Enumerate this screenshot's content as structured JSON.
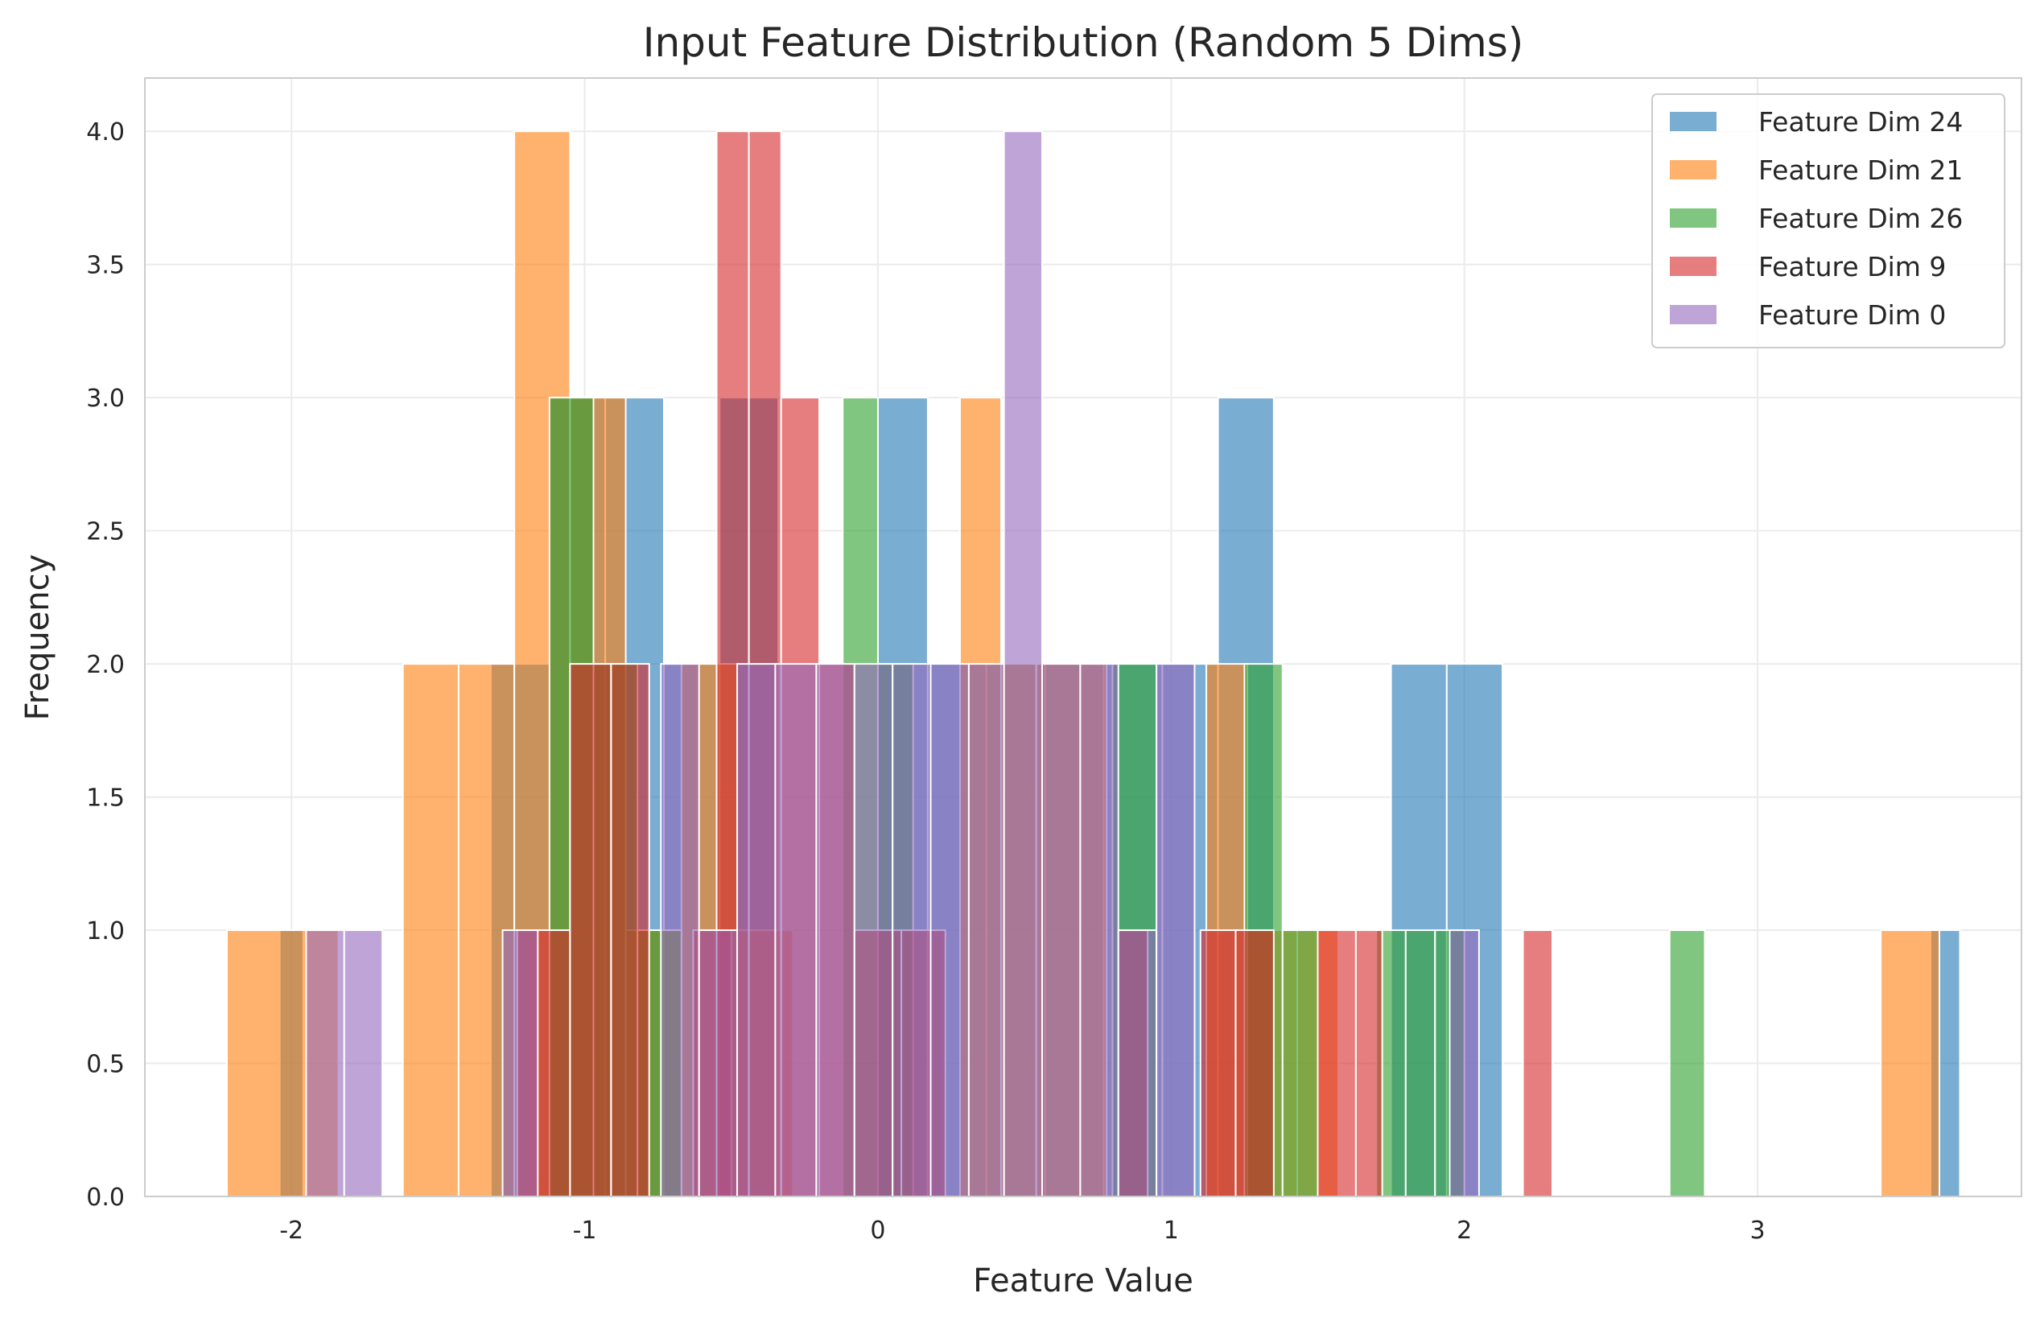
{
  "chart_data": {
    "type": "bar",
    "title": "Input Feature Distribution (Random 5 Dims)",
    "xlabel": "Feature Value",
    "ylabel": "Frequency",
    "xlim": [
      -2.5,
      3.9
    ],
    "ylim": [
      0,
      4.2
    ],
    "x_ticks": [
      -2,
      -1,
      0,
      1,
      2,
      3
    ],
    "y_ticks": [
      0.0,
      0.5,
      1.0,
      1.5,
      2.0,
      2.5,
      3.0,
      3.5,
      4.0
    ],
    "x_tick_labels": [
      "-2",
      "-1",
      "0",
      "1",
      "2",
      "3"
    ],
    "y_tick_labels": [
      "0.0",
      "0.5",
      "1.0",
      "1.5",
      "2.0",
      "2.5",
      "3.0",
      "3.5",
      "4.0"
    ],
    "grid": true,
    "legend_position": "top-right",
    "bar_opacity": 0.6,
    "series": [
      {
        "name": "Feature Dim 24",
        "color": "#1f77b4",
        "bins": [
          [
            -2.04,
            -1.96,
            1
          ],
          [
            -1.32,
            -1.12,
            2
          ],
          [
            -1.12,
            -0.93,
            3
          ],
          [
            -0.93,
            -0.73,
            3
          ],
          [
            -0.73,
            -0.54,
            2
          ],
          [
            -0.54,
            -0.34,
            3
          ],
          [
            0.0,
            0.17,
            3
          ],
          [
            0.17,
            0.37,
            2
          ],
          [
            0.37,
            0.57,
            2
          ],
          [
            0.57,
            0.77,
            2
          ],
          [
            0.77,
            0.97,
            2
          ],
          [
            0.97,
            1.16,
            2
          ],
          [
            1.16,
            1.35,
            3
          ],
          [
            1.75,
            1.94,
            2
          ],
          [
            1.94,
            2.13,
            2
          ],
          [
            3.59,
            3.69,
            1
          ]
        ]
      },
      {
        "name": "Feature Dim 21",
        "color": "#ff7f0e",
        "bins": [
          [
            -2.22,
            -1.84,
            1
          ],
          [
            -1.62,
            -1.43,
            2
          ],
          [
            -1.43,
            -1.24,
            2
          ],
          [
            -1.24,
            -1.05,
            4
          ],
          [
            -1.05,
            -0.86,
            3
          ],
          [
            -0.86,
            -0.67,
            1
          ],
          [
            -0.67,
            -0.48,
            2
          ],
          [
            -0.48,
            -0.29,
            1
          ],
          [
            0.28,
            0.42,
            3
          ],
          [
            0.42,
            0.54,
            2
          ],
          [
            0.54,
            0.78,
            2
          ],
          [
            1.12,
            1.26,
            2
          ],
          [
            1.26,
            1.43,
            1
          ],
          [
            1.43,
            1.57,
            1
          ],
          [
            3.42,
            3.62,
            1
          ]
        ]
      },
      {
        "name": "Feature Dim 26",
        "color": "#2ca02c",
        "bins": [
          [
            -1.12,
            -0.97,
            3
          ],
          [
            -0.97,
            -0.82,
            2
          ],
          [
            -0.82,
            -0.67,
            1
          ],
          [
            -0.12,
            0.0,
            3
          ],
          [
            0.0,
            0.12,
            2
          ],
          [
            0.8,
            0.95,
            2
          ],
          [
            1.25,
            1.38,
            2
          ],
          [
            1.38,
            1.5,
            1
          ],
          [
            1.7,
            1.8,
            1
          ],
          [
            1.8,
            1.9,
            1
          ],
          [
            1.9,
            2.0,
            1
          ],
          [
            2.7,
            2.82,
            1
          ]
        ]
      },
      {
        "name": "Feature Dim 9",
        "color": "#d62728",
        "bins": [
          [
            -1.23,
            -1.05,
            1
          ],
          [
            -1.05,
            -0.91,
            2
          ],
          [
            -0.91,
            -0.78,
            2
          ],
          [
            -0.63,
            -0.5,
            1
          ],
          [
            -0.55,
            -0.44,
            4
          ],
          [
            -0.44,
            -0.33,
            4
          ],
          [
            -0.33,
            -0.2,
            3
          ],
          [
            -0.2,
            -0.08,
            2
          ],
          [
            -0.08,
            0.08,
            1
          ],
          [
            0.08,
            0.23,
            1
          ],
          [
            0.82,
            0.92,
            1
          ],
          [
            1.1,
            1.22,
            1
          ],
          [
            1.22,
            1.35,
            1
          ],
          [
            1.5,
            1.63,
            1
          ],
          [
            1.63,
            1.72,
            1
          ],
          [
            2.2,
            2.3,
            1
          ]
        ]
      },
      {
        "name": "Feature Dim 0",
        "color": "#9467bd",
        "bins": [
          [
            -1.95,
            -1.82,
            1
          ],
          [
            -1.82,
            -1.69,
            1
          ],
          [
            -1.28,
            -1.16,
            1
          ],
          [
            -0.74,
            -0.61,
            2
          ],
          [
            -0.61,
            -0.48,
            1
          ],
          [
            -0.48,
            -0.35,
            2
          ],
          [
            -0.35,
            -0.21,
            2
          ],
          [
            -0.21,
            -0.08,
            2
          ],
          [
            -0.08,
            0.05,
            2
          ],
          [
            0.05,
            0.18,
            2
          ],
          [
            0.18,
            0.31,
            2
          ],
          [
            0.31,
            0.43,
            2
          ],
          [
            0.43,
            0.56,
            4
          ],
          [
            0.56,
            0.69,
            2
          ],
          [
            0.69,
            0.82,
            2
          ],
          [
            0.82,
            0.95,
            1
          ],
          [
            0.95,
            1.08,
            2
          ],
          [
            1.95,
            2.05,
            1
          ]
        ]
      }
    ]
  }
}
